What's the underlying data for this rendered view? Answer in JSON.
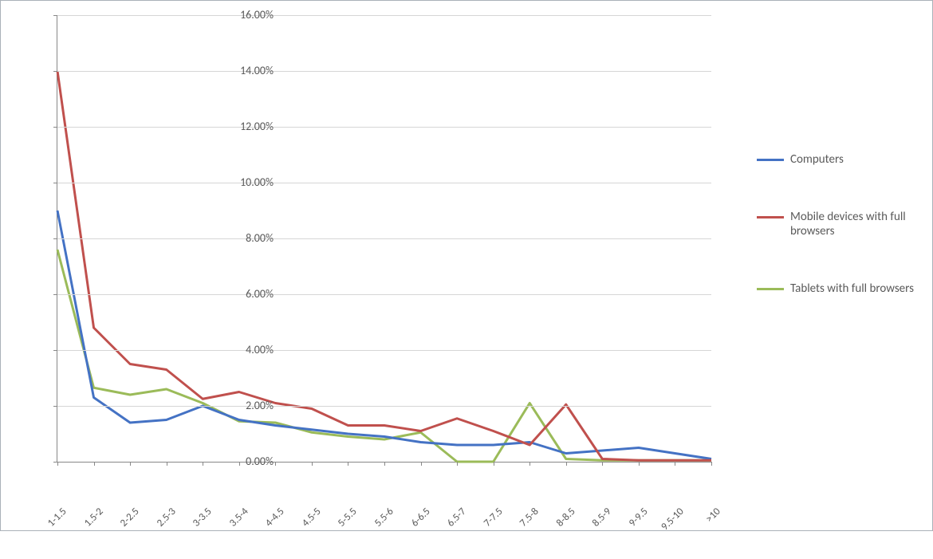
{
  "chart": {
    "type": "line",
    "background_color": "#ffffff",
    "border_color": "#aab1b8",
    "grid_color": "#d6d6d6",
    "text_color": "#5a5a5a",
    "axis_color": "#888888",
    "axis_font_size_pt": 14,
    "legend_font_size_pt": 15,
    "y": {
      "min": 0,
      "max": 16,
      "tick_step": 2,
      "tick_format": "0.00%",
      "ticks": [
        "0.00%",
        "2.00%",
        "4.00%",
        "6.00%",
        "8.00%",
        "10.00%",
        "12.00%",
        "14.00%",
        "16.00%"
      ],
      "grid": true
    },
    "x": {
      "categories": [
        "1-1.5",
        "1.5-2",
        "2-2.5",
        "2.5-3",
        "3-3.5",
        "3.5-4",
        "4-4.5",
        "4.5-5",
        "5-5.5",
        "5.5-6",
        "6-6.5",
        "6.5-7",
        "7-7.5",
        "7.5-8",
        "8-8.5",
        "8.5-9",
        "9-9.5",
        "9.5-10",
        ">10"
      ],
      "label_rotation_deg": -45
    },
    "legend": {
      "position": "right",
      "items_order": [
        "computers",
        "mobile",
        "tablets"
      ]
    },
    "series": {
      "computers": {
        "label": "Computers",
        "color": "#4472c4",
        "line_width": 3,
        "values": [
          9.0,
          2.3,
          1.4,
          1.5,
          2.0,
          1.5,
          1.3,
          1.15,
          1.0,
          0.9,
          0.7,
          0.6,
          0.6,
          0.7,
          0.3,
          0.4,
          0.5,
          0.3,
          0.1
        ]
      },
      "mobile": {
        "label": "Mobile devices with full browsers",
        "color": "#c0504d",
        "line_width": 3,
        "values": [
          14.0,
          4.8,
          3.5,
          3.3,
          2.25,
          2.5,
          2.1,
          1.9,
          1.3,
          1.3,
          1.1,
          1.55,
          1.1,
          0.6,
          2.05,
          0.1,
          0.05,
          0.05,
          0.05
        ]
      },
      "tablets": {
        "label": "Tablets with full browsers",
        "color": "#9bbb59",
        "line_width": 3,
        "values": [
          7.6,
          2.65,
          2.4,
          2.6,
          2.1,
          1.45,
          1.4,
          1.05,
          0.9,
          0.8,
          1.05,
          0.0,
          0.0,
          2.1,
          0.1,
          0.05,
          0.05,
          0.05,
          0.05
        ]
      }
    }
  }
}
